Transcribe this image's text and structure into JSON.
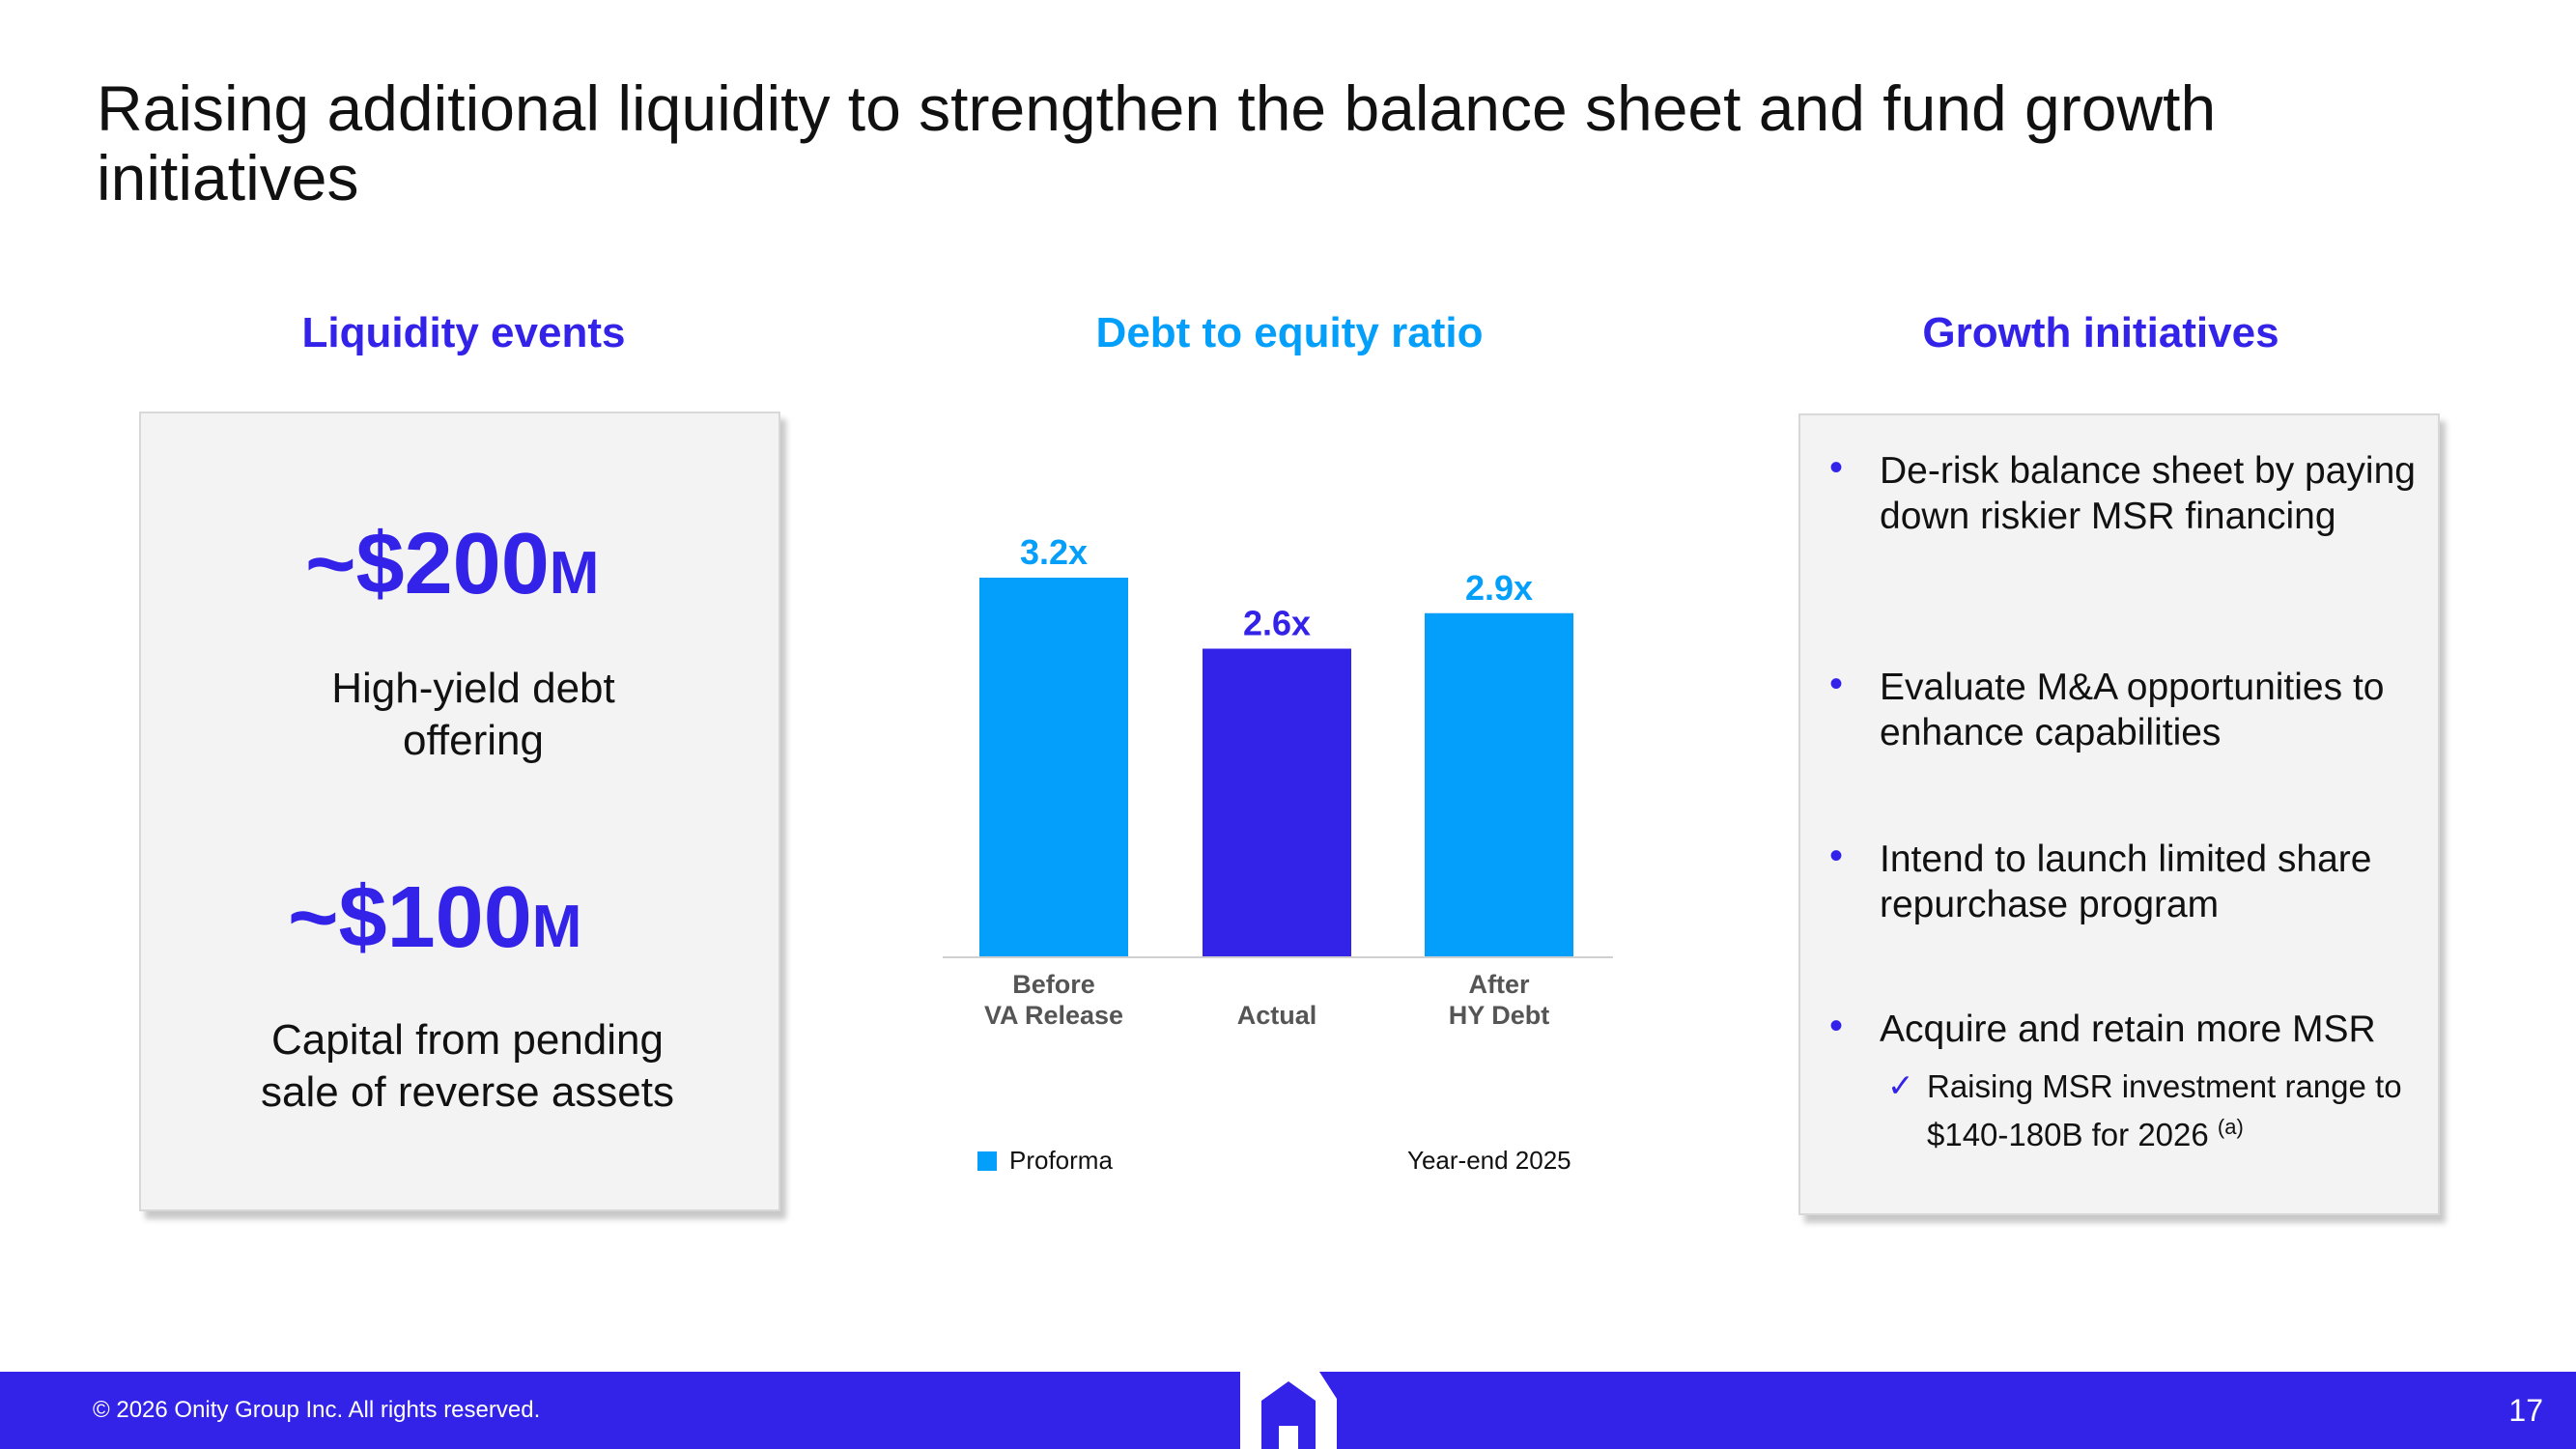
{
  "title": "Raising additional liquidity to strengthen the balance sheet and fund growth initiatives",
  "colors": {
    "brand_blue": "#3322e8",
    "light_blue": "#049ffa",
    "panel_bg": "#f3f3f3",
    "axis_label": "#555555"
  },
  "liquidity": {
    "heading": "Liquidity events",
    "items": [
      {
        "amount": "~$200",
        "unit": "M",
        "description_line1": "High-yield debt",
        "description_line2": "offering"
      },
      {
        "amount": "~$100",
        "unit": "M",
        "description_line1": "Capital from pending",
        "description_line2": "sale of reverse assets"
      }
    ]
  },
  "debt_ratio": {
    "heading": "Debt to equity ratio",
    "legend_proforma": "Proforma",
    "legend_yearend": "Year-end 2025"
  },
  "chart_data": {
    "type": "bar",
    "title": "Debt to equity ratio",
    "categories": [
      "Before\nVA Release",
      "Actual",
      "After\nHY Debt"
    ],
    "values": [
      3.2,
      2.6,
      2.9
    ],
    "value_labels": [
      "3.2x",
      "2.6x",
      "2.9x"
    ],
    "bar_types": [
      "Proforma",
      "Year-end 2025",
      "Proforma"
    ],
    "ylim": [
      0,
      3.5
    ],
    "grid": false,
    "legend": [
      "Proforma"
    ],
    "legend_position": "bottom-left"
  },
  "growth": {
    "heading": "Growth initiatives",
    "bullets": [
      "De-risk balance sheet by paying down riskier MSR financing",
      "Evaluate M&A opportunities to enhance capabilities",
      "Intend to launch limited share repurchase program",
      "Acquire and retain more MSR"
    ],
    "sub_bullet_mark": "✓",
    "sub_bullet": "Raising MSR investment range to $140-180B for 2026",
    "sub_bullet_note": "(a)",
    "bullet_mark": "•"
  },
  "footer": {
    "copyright": "© 2026 Onity Group Inc. All rights reserved.",
    "page_number": "17",
    "logo_icon": "house-logo-icon"
  }
}
